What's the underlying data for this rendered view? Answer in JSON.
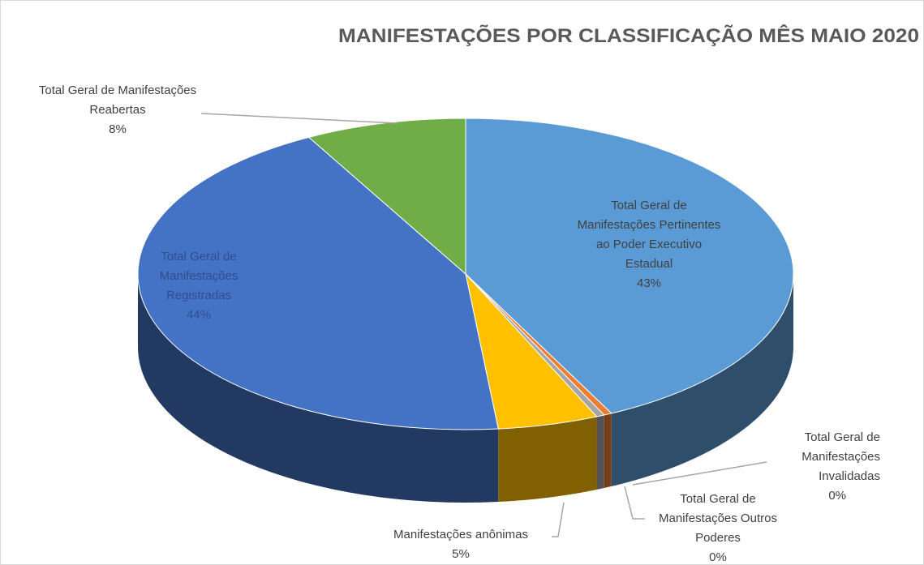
{
  "chart_data": {
    "type": "pie3d",
    "title": "MANIFESTAÇÕES POR CLASSIFICAÇÃO MÊS MAIO 2020",
    "categories": [
      "Total Geral de Manifestações Pertinentes ao Poder Executivo Estadual",
      "Total Geral de Manifestações Invalidadas",
      "Total Geral de Manifestações Outros Poderes",
      "Manifestações anônimas",
      "Total Geral de Manifestações Registradas",
      "Total Geral de Manifestações Reabertas"
    ],
    "values": [
      43,
      0.4,
      0.4,
      5,
      44,
      8
    ],
    "value_labels": [
      "43%",
      "0%",
      "0%",
      "5%",
      "44%",
      "8%"
    ],
    "colors": [
      "#5b9bd5",
      "#ed7d31",
      "#a5a5a5",
      "#ffc000",
      "#4472c4",
      "#70ad47"
    ]
  }
}
